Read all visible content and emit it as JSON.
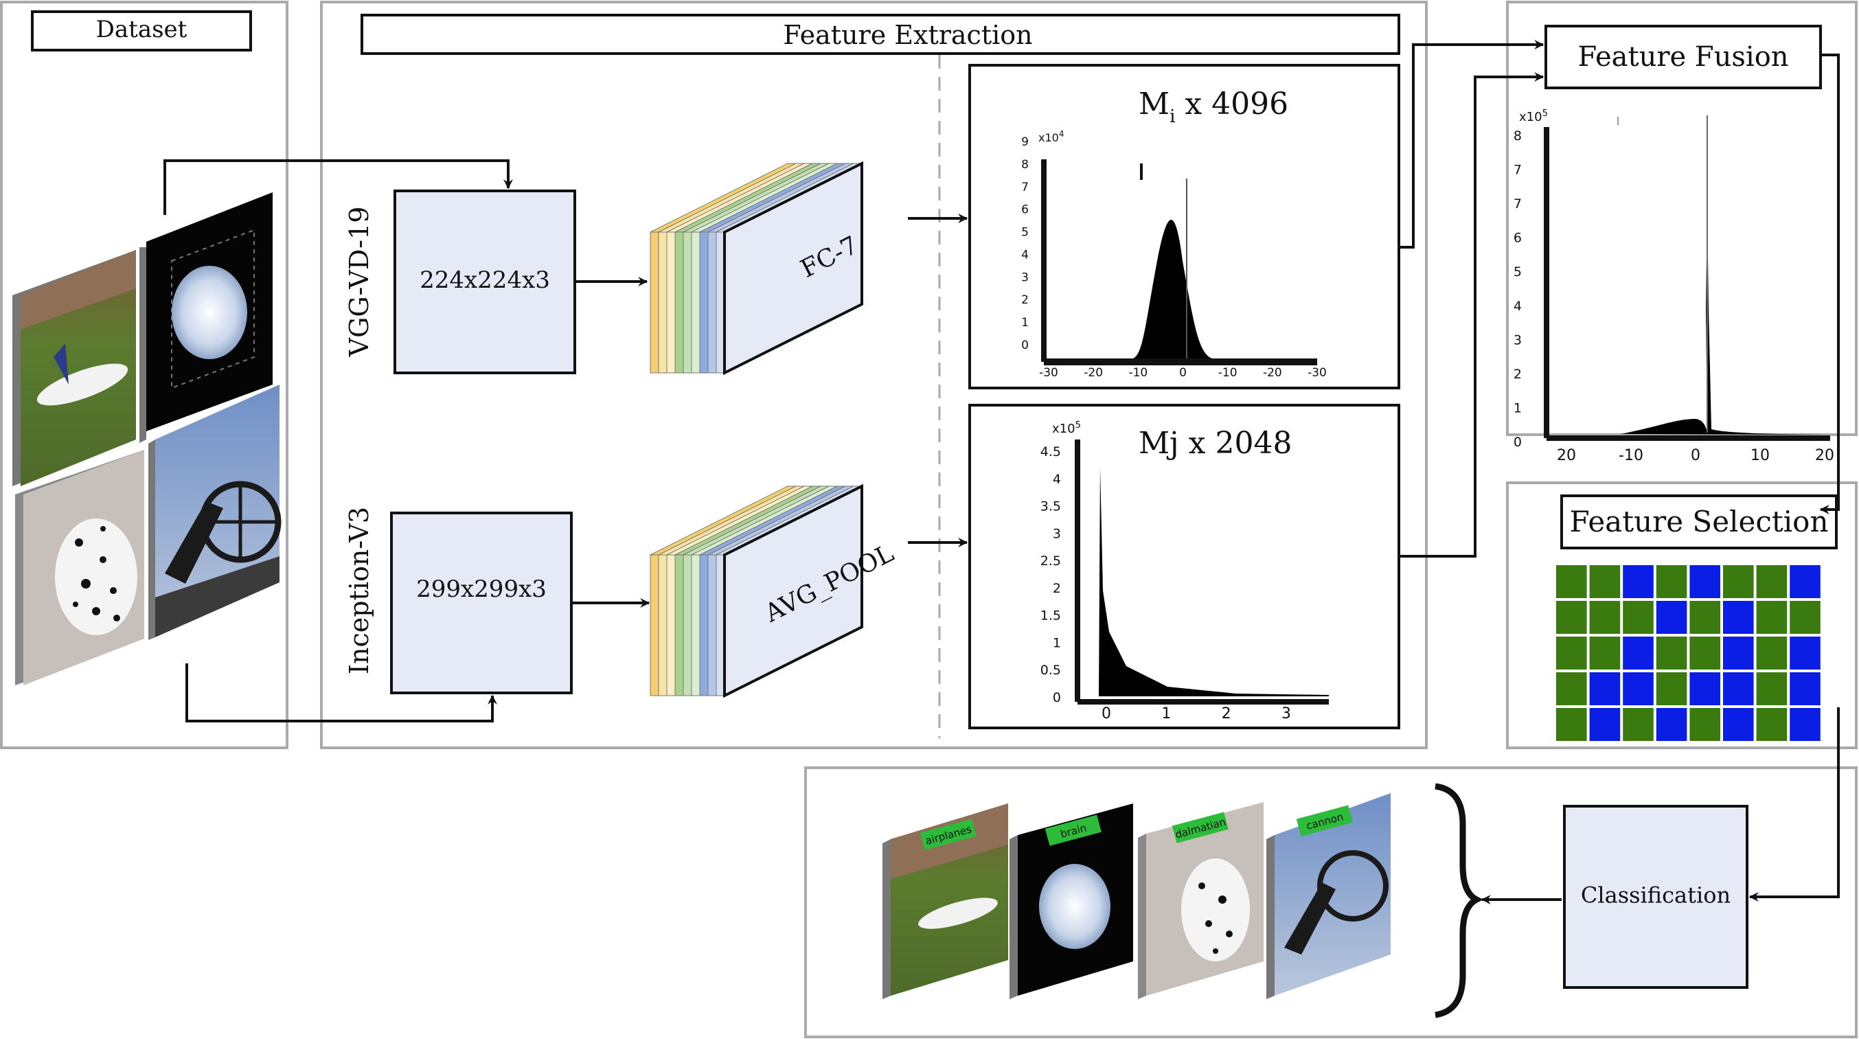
{
  "labels": {
    "dataset": "Dataset",
    "feature_extraction": "Feature Extraction",
    "vgg": "VGG-VD-19",
    "inception": "Inception-V3",
    "input_vgg": "224x224x3",
    "input_inception": "299x299x3",
    "fc7": "FC-7",
    "avg_pool": "AVG_POOL",
    "mi_base": "M",
    "mi_sub": "i",
    "mi_rest": " x 4096",
    "mj": "Mj x 2048",
    "feature_fusion": "Feature Fusion",
    "feature_selection": "Feature Selection",
    "classification": "Classification"
  },
  "colors": {
    "box_fill": "#e6eaf6",
    "panel_border": "#aaaaaa",
    "grid_green": "#3a7a0e",
    "grid_blue": "#0a1ee6",
    "label_green": "#2dbb3a",
    "layer_colors": [
      "#f5cf6e",
      "#f9e4a8",
      "#fbeec5",
      "#a9d18e",
      "#c5e0b4",
      "#dbeed0",
      "#8faadc",
      "#b4c7e7",
      "#d6e0f2"
    ]
  },
  "output_labels": [
    "airplanes",
    "brain",
    "dalmatian",
    "cannon"
  ],
  "charts": {
    "vgg_hist": {
      "multiplier": "x10",
      "exponent": "4",
      "x_ticks": [
        "-30",
        "-20",
        "-10",
        "0",
        "-10",
        "-20",
        "-30"
      ],
      "y_ticks": [
        "9",
        "8",
        "7",
        "6",
        "5",
        "4",
        "3",
        "2",
        "1",
        "0"
      ]
    },
    "inception_hist": {
      "multiplier": "x10",
      "exponent": "5",
      "x_ticks": [
        "0",
        "1",
        "2",
        "3"
      ],
      "y_ticks": [
        "4.5",
        "4",
        "3.5",
        "3",
        "2.5",
        "2",
        "1.5",
        "1",
        "0.5",
        "0"
      ]
    },
    "fusion_hist": {
      "multiplier": "x10",
      "exponent": "5",
      "x_ticks": [
        "20",
        "-10",
        "0",
        "10",
        "20"
      ],
      "y_ticks": [
        "8",
        "7",
        "7",
        "6",
        "5",
        "4",
        "3",
        "2",
        "1",
        "0"
      ]
    }
  },
  "selection_grid": [
    [
      "g",
      "g",
      "b",
      "g",
      "b",
      "g",
      "g",
      "b"
    ],
    [
      "g",
      "g",
      "g",
      "b",
      "g",
      "b",
      "g",
      "g"
    ],
    [
      "g",
      "g",
      "b",
      "g",
      "g",
      "b",
      "g",
      "b"
    ],
    [
      "g",
      "b",
      "b",
      "g",
      "b",
      "b",
      "g",
      "b"
    ],
    [
      "g",
      "b",
      "g",
      "b",
      "g",
      "b",
      "g",
      "b"
    ]
  ]
}
